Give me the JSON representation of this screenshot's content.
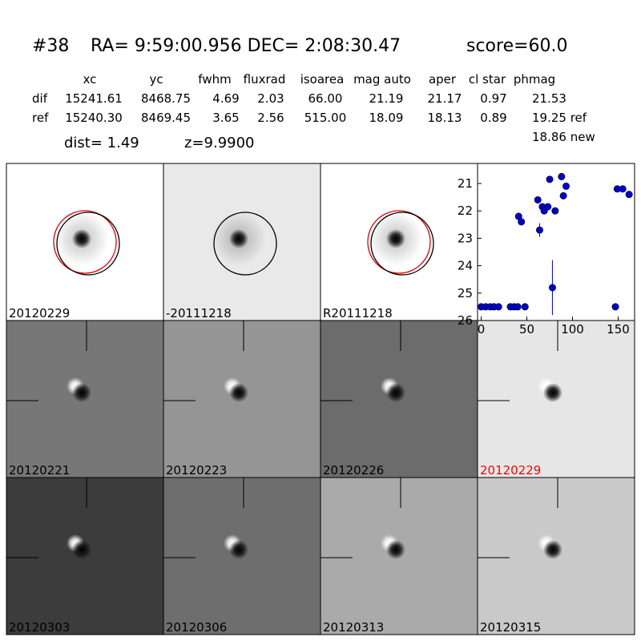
{
  "header": {
    "id": "#38",
    "coords": "RA= 9:59:00.956 DEC= 2:08:30.47",
    "score": "score=60.0"
  },
  "table": {
    "columns": [
      "xc",
      "yc",
      "fwhm",
      "fluxrad",
      "isoarea",
      "mag auto",
      "aper",
      "cl star",
      "phmag"
    ],
    "rows": [
      {
        "label": "dif",
        "cells": [
          "15241.61",
          "8468.75",
          "4.69",
          "2.03",
          "66.00",
          "21.19",
          "21.17",
          "0.97",
          "21.53"
        ]
      },
      {
        "label": "ref",
        "cells": [
          "15240.30",
          "8469.45",
          "3.65",
          "2.56",
          "515.00",
          "18.09",
          "18.13",
          "0.89",
          "19.25 ref"
        ]
      }
    ],
    "extra": "18.86 new"
  },
  "dist": "dist=  1.49",
  "z": "z=9.9900",
  "panels": [
    "20120229",
    "-20111218",
    "R20111218",
    "20120221",
    "20120223",
    "20120226",
    "20120229",
    "20120303",
    "20120306",
    "20120313",
    "20120315"
  ],
  "chart_data": {
    "type": "scatter",
    "x": [
      0,
      5,
      10,
      14,
      19,
      32,
      36,
      40,
      48,
      41,
      44,
      62,
      64,
      67,
      69,
      73,
      75,
      78,
      81,
      88,
      90,
      93,
      147,
      149,
      155,
      162
    ],
    "values": [
      25.5,
      25.5,
      25.5,
      25.5,
      25.5,
      25.5,
      25.5,
      25.5,
      25.5,
      22.2,
      22.4,
      21.6,
      22.7,
      21.85,
      22.0,
      21.85,
      20.85,
      24.8,
      22.0,
      20.75,
      21.45,
      21.1,
      25.5,
      21.2,
      21.2,
      21.4
    ],
    "errors": [
      0.05,
      0.05,
      0.05,
      0.05,
      0.05,
      0.05,
      0.05,
      0.05,
      0.05,
      0.1,
      0.1,
      0.05,
      0.25,
      0.05,
      0.05,
      0.05,
      0.05,
      1.0,
      0.1,
      0.05,
      0.05,
      0.05,
      0.1,
      0.05,
      0.05,
      0.05
    ],
    "color": "#0000cc",
    "xlim": [
      -4,
      168
    ],
    "ylim": [
      20.27,
      26
    ],
    "y_inverted": true,
    "xticks": [
      0,
      50,
      100,
      150
    ],
    "yticks": [
      21,
      22,
      23,
      24,
      25,
      26
    ]
  }
}
